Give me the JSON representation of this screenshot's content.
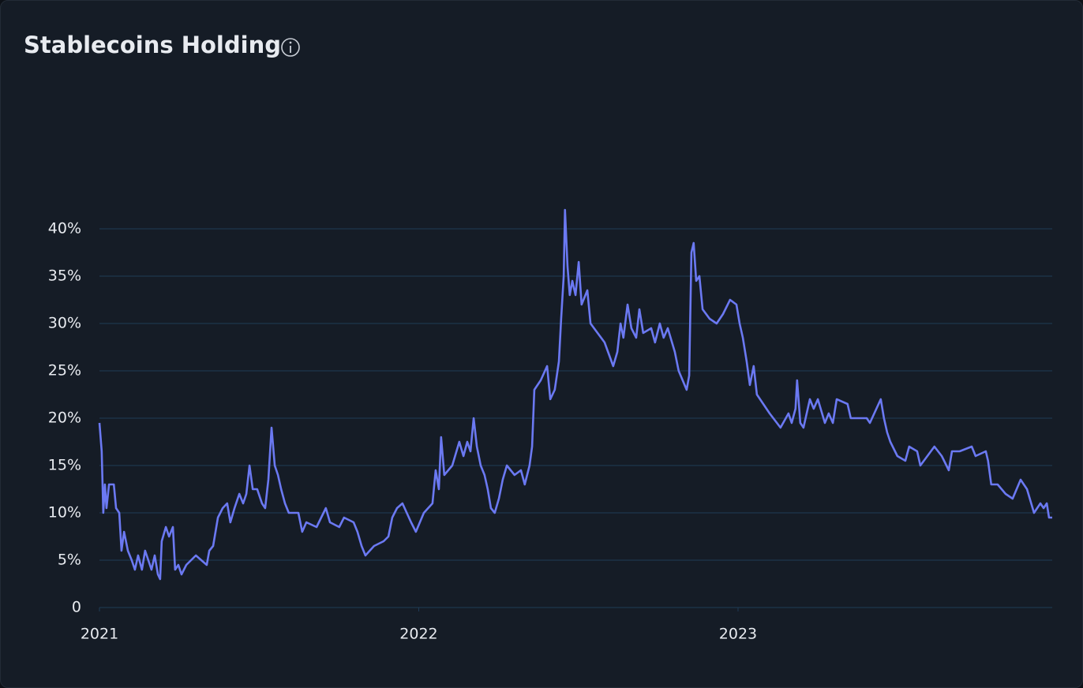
{
  "chart_data": {
    "type": "line",
    "title": "Stablecoins Holding",
    "xlim": [
      2021,
      2023.984
    ],
    "xticks": [
      2021,
      2022,
      2023
    ],
    "ylim": [
      0,
      40
    ],
    "yticks": [
      0,
      {
        "value": 5,
        "label": "5%"
      },
      {
        "value": 10,
        "label": "10%"
      },
      {
        "value": 15,
        "label": "15%"
      },
      {
        "value": 20,
        "label": "20%"
      },
      {
        "value": 25,
        "label": "25%"
      },
      {
        "value": 30,
        "label": "30%"
      },
      {
        "value": 35,
        "label": "35%"
      },
      {
        "value": 40,
        "label": "40%"
      }
    ],
    "grid": true,
    "x": [
      2021.0,
      2021.007,
      2021.012,
      2021.017,
      2021.022,
      2021.03,
      2021.045,
      2021.052,
      2021.062,
      2021.069,
      2021.077,
      2021.089,
      2021.101,
      2021.111,
      2021.121,
      2021.133,
      2021.143,
      2021.163,
      2021.173,
      2021.183,
      2021.19,
      2021.195,
      2021.208,
      2021.218,
      2021.23,
      2021.237,
      2021.247,
      2021.257,
      2021.272,
      2021.302,
      2021.336,
      2021.344,
      2021.356,
      2021.371,
      2021.386,
      2021.4,
      2021.41,
      2021.423,
      2021.438,
      2021.45,
      2021.46,
      2021.47,
      2021.48,
      2021.494,
      2021.509,
      2021.519,
      2021.529,
      2021.539,
      2021.549,
      2021.559,
      2021.569,
      2021.581,
      2021.593,
      2021.623,
      2021.635,
      2021.648,
      2021.68,
      2021.709,
      2021.722,
      2021.751,
      2021.766,
      2021.796,
      2021.808,
      2021.821,
      2021.833,
      2021.86,
      2021.89,
      2021.905,
      2021.917,
      2021.932,
      2021.949,
      2021.976,
      2021.991,
      2022.016,
      2022.043,
      2022.053,
      2022.063,
      2022.07,
      2022.08,
      2022.105,
      2022.127,
      2022.14,
      2022.152,
      2022.162,
      2022.172,
      2022.182,
      2022.194,
      2022.206,
      2022.216,
      2022.226,
      2022.238,
      2022.251,
      2022.263,
      2022.276,
      2022.3,
      2022.32,
      2022.332,
      2022.347,
      2022.355,
      2022.362,
      2022.382,
      2022.402,
      2022.412,
      2022.426,
      2022.439,
      2022.446,
      2022.454,
      2022.458,
      2022.466,
      2022.473,
      2022.481,
      2022.491,
      2022.501,
      2022.51,
      2022.528,
      2022.538,
      2022.56,
      2022.582,
      2022.609,
      2022.622,
      2022.632,
      2022.641,
      2022.654,
      2022.666,
      2022.681,
      2022.691,
      2022.703,
      2022.728,
      2022.74,
      2022.755,
      2022.767,
      2022.78,
      2022.802,
      2022.814,
      2022.839,
      2022.847,
      2022.854,
      2022.861,
      2022.869,
      2022.879,
      2022.889,
      2022.911,
      2022.933,
      2022.953,
      2022.975,
      2022.995,
      2023.005,
      2023.015,
      2023.027,
      2023.037,
      2023.049,
      2023.059,
      2023.079,
      2023.099,
      2023.133,
      2023.158,
      2023.168,
      2023.18,
      2023.185,
      2023.195,
      2023.205,
      2023.225,
      2023.237,
      2023.25,
      2023.272,
      2023.284,
      2023.297,
      2023.309,
      2023.343,
      2023.353,
      2023.378,
      2023.403,
      2023.413,
      2023.447,
      2023.457,
      2023.467,
      2023.477,
      2023.499,
      2023.524,
      2023.536,
      2023.561,
      2023.571,
      2023.615,
      2023.638,
      2023.66,
      2023.67,
      2023.694,
      2023.732,
      2023.744,
      2023.776,
      2023.783,
      2023.793,
      2023.813,
      2023.838,
      2023.86,
      2023.885,
      2023.905,
      2023.927,
      2023.947,
      2023.957,
      2023.967,
      2023.974,
      2023.984
    ],
    "series": [
      {
        "color": "#6b79f2",
        "values": [
          19.5,
          16.5,
          10,
          13,
          10.5,
          13,
          13,
          10.5,
          10,
          6,
          8,
          6,
          5,
          4,
          5.5,
          4,
          6,
          4,
          5.5,
          3.5,
          3,
          7,
          8.5,
          7.5,
          8.5,
          4,
          4.5,
          3.5,
          4.5,
          5.5,
          4.5,
          6,
          6.5,
          9.5,
          10.5,
          11,
          9,
          10.5,
          12,
          11,
          12,
          15,
          12.5,
          12.5,
          11,
          10.5,
          13.5,
          19,
          15,
          14,
          12.5,
          11,
          10,
          10,
          8,
          9,
          8.5,
          10.5,
          9,
          8.5,
          9.5,
          9,
          8,
          6.5,
          5.5,
          6.5,
          7,
          7.5,
          9.5,
          10.5,
          11,
          9,
          8,
          10,
          11,
          14.5,
          12.5,
          18,
          14,
          15,
          17.5,
          16,
          17.5,
          16.5,
          20,
          17,
          15,
          14,
          12.5,
          10.5,
          10,
          11.5,
          13.5,
          15,
          14,
          14.5,
          13,
          15,
          17,
          23,
          24,
          25.5,
          22,
          23,
          26,
          30.5,
          35,
          42,
          36,
          33,
          34.5,
          33,
          36.5,
          32,
          33.5,
          30,
          29,
          28,
          25.5,
          27,
          30,
          28.5,
          32,
          29.5,
          28.5,
          31.5,
          29,
          29.5,
          28,
          30,
          28.5,
          29.5,
          27,
          25,
          23,
          24.5,
          37.5,
          38.5,
          34.5,
          35,
          31.5,
          30.5,
          30,
          31,
          32.5,
          32,
          30,
          28.5,
          26,
          23.5,
          25.5,
          22.5,
          21.5,
          20.5,
          19,
          20.5,
          19.5,
          21,
          24,
          19.5,
          19,
          22,
          21,
          22,
          19.5,
          20.5,
          19.5,
          22,
          21.5,
          20,
          20,
          20,
          19.5,
          22,
          20,
          18.5,
          17.5,
          16,
          15.5,
          17,
          16.5,
          15,
          17,
          16,
          14.5,
          16.5,
          16.5,
          17,
          16,
          16.5,
          15.5,
          13,
          13,
          12,
          11.5,
          13.5,
          12.5,
          10,
          11,
          10.5,
          11,
          9.5,
          9.5
        ]
      }
    ]
  }
}
